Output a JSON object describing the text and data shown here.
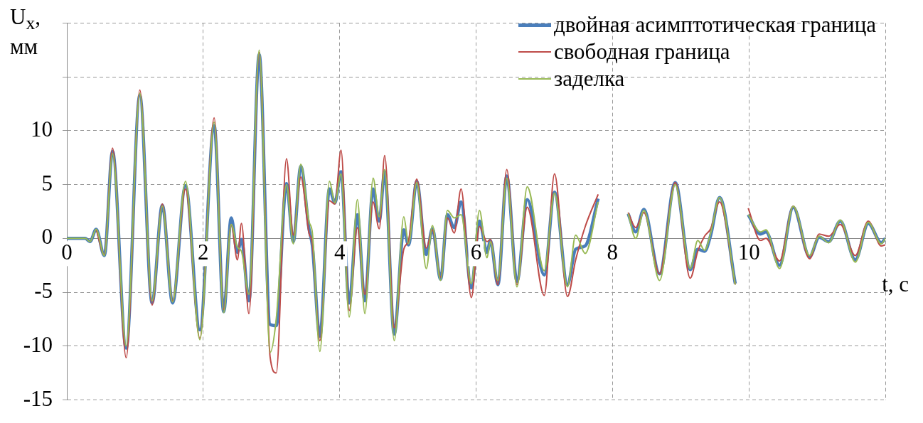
{
  "chart_data": {
    "type": "line",
    "xlabel": "t, c",
    "ylabel": "U$_{x}$, мм",
    "x": [
      0,
      0.27,
      0.34,
      0.43,
      0.55,
      0.67,
      0.87,
      1.07,
      1.25,
      1.4,
      1.55,
      1.74,
      1.95,
      2.16,
      2.3,
      2.41,
      2.5,
      2.56,
      2.67,
      2.82,
      2.98,
      3.07,
      3.22,
      3.32,
      3.43,
      3.55,
      3.6,
      3.71,
      3.85,
      3.93,
      4.02,
      4.14,
      4.26,
      4.37,
      4.49,
      4.58,
      4.66,
      4.8,
      4.94,
      5.01,
      5.13,
      5.27,
      5.36,
      5.48,
      5.58,
      5.68,
      5.78,
      5.93,
      6.05,
      6.16,
      6.21,
      6.32,
      6.45,
      6.6,
      6.75,
      7.0,
      7.15,
      7.34,
      7.46,
      7.6,
      7.79,
      7.93,
      8.1,
      8.23,
      8.34,
      8.46,
      8.69,
      8.92,
      9.14,
      9.25,
      9.35,
      9.44,
      9.57,
      9.8,
      9.89,
      9.99,
      10.17,
      10.25,
      10.45,
      10.65,
      10.89,
      11.03,
      11.17,
      11.34,
      11.56,
      11.75,
      11.94,
      12.0
    ],
    "series": [
      {
        "name": "двойная асимптотическая граница",
        "color": "#4a7ebb",
        "values": [
          0,
          0,
          -0.3,
          0.85,
          -1.6,
          8.1,
          -10.2,
          13.3,
          -6.0,
          3.1,
          -6.0,
          4.9,
          -8.5,
          10.5,
          -6.8,
          1.9,
          -1.3,
          -0.1,
          -5.8,
          17.1,
          -8.0,
          -8.1,
          5.1,
          -0.3,
          6.7,
          0.9,
          -0.7,
          -9.1,
          4.6,
          3.3,
          6.2,
          -6.0,
          2.2,
          -5.8,
          4.6,
          1.6,
          6.2,
          -8.9,
          0.8,
          -0.6,
          5.3,
          -1.5,
          0.9,
          -3.8,
          2.2,
          1.0,
          3.4,
          -4.6,
          1.6,
          -1.3,
          -0.2,
          -4.3,
          5.8,
          -4.0,
          3.6,
          -3.4,
          4.3,
          -4.3,
          -1.0,
          -0.7,
          3.7,
          null,
          null,
          2.3,
          0.6,
          2.7,
          -3.3,
          5.2,
          -2.9,
          -1.0,
          -1.2,
          0.3,
          3.8,
          -4.2,
          null,
          2.2,
          0.4,
          0.6,
          -2.5,
          2.9,
          -1.7,
          0.1,
          -0.3,
          1.6,
          -2.0,
          1.4,
          -0.4,
          0
        ]
      },
      {
        "name": "свободная граница",
        "color": "#be4b48",
        "values": [
          null,
          null,
          null,
          0.85,
          -1.5,
          8.4,
          -11.1,
          13.8,
          -6.2,
          3.2,
          -5.8,
          4.6,
          -9.3,
          11.2,
          -6.6,
          1.3,
          -2.0,
          1.4,
          -7.0,
          17.3,
          -11.0,
          -12.5,
          7.4,
          0.3,
          5.7,
          0.5,
          -0.5,
          -9.5,
          3.5,
          3.2,
          8.2,
          -6.7,
          1.0,
          -5.2,
          3.4,
          0.9,
          7.7,
          -8.3,
          -1.0,
          -0.2,
          5.5,
          -0.9,
          0.8,
          -3.6,
          1.9,
          0.5,
          4.6,
          -5.5,
          1.1,
          -0.3,
          -0.1,
          -4.3,
          6.4,
          -4.3,
          2.9,
          -5.3,
          6.0,
          -5.4,
          -2.0,
          1.1,
          4.1,
          null,
          null,
          2.4,
          1.0,
          2.4,
          -3.3,
          5.2,
          -3.7,
          -1.2,
          0.2,
          0.9,
          3.4,
          -4.3,
          null,
          2.8,
          -0.2,
          0.0,
          -2.1,
          3.0,
          -1.9,
          0.4,
          0.2,
          1.3,
          -1.6,
          1.6,
          -0.7,
          -0.6
        ]
      },
      {
        "name": "заделка",
        "color": "#98b954",
        "values": [
          0,
          0,
          -0.3,
          0.85,
          -1.6,
          7.9,
          -10.0,
          13.5,
          -5.8,
          3.0,
          -5.9,
          5.3,
          -9.4,
          10.8,
          -6.9,
          1.3,
          -0.8,
          -1.2,
          -5.2,
          17.5,
          -10.6,
          -7.5,
          5.0,
          -0.5,
          6.9,
          1.6,
          0.5,
          -10.5,
          5.3,
          3.3,
          6.0,
          -7.3,
          3.6,
          -7.0,
          5.6,
          2.0,
          6.4,
          -9.5,
          2.0,
          -0.5,
          5.2,
          -2.8,
          1.2,
          -3.9,
          2.6,
          1.9,
          2.2,
          -4.2,
          2.6,
          -1.8,
          -0.3,
          -3.9,
          5.6,
          -4.5,
          4.8,
          -3.0,
          4.2,
          -4.5,
          0.3,
          -1.4,
          3.4,
          null,
          null,
          2.3,
          0.0,
          2.6,
          -3.9,
          5.0,
          -2.8,
          -0.2,
          -1.1,
          0.5,
          3.8,
          -4.3,
          null,
          2.2,
          0.6,
          0.8,
          -2.8,
          3.0,
          -1.6,
          0.2,
          -0.4,
          1.7,
          -2.2,
          1.5,
          -0.5,
          0
        ]
      }
    ],
    "xlim": [
      0,
      12
    ],
    "xticks": [
      0,
      2,
      4,
      6,
      8,
      10,
      {
        "value": 12,
        "label": null
      }
    ],
    "ylim": [
      -15,
      20
    ],
    "yticks": [
      -15,
      -10,
      -5,
      0,
      5,
      10,
      {
        "value": 15,
        "label": null
      },
      {
        "value": 20,
        "label": null
      }
    ],
    "grid": true,
    "legend": "top right",
    "marker": "none",
    "line_style": "solid"
  }
}
